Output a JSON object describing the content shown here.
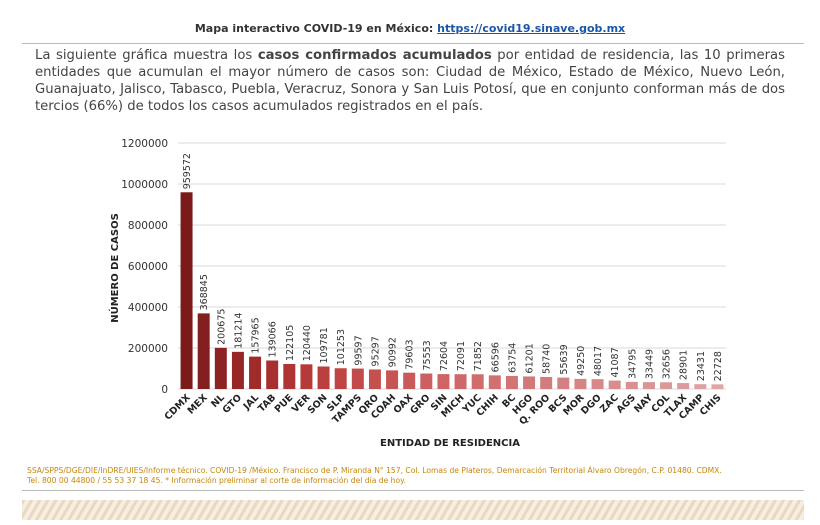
{
  "header": {
    "label": "Mapa interactivo COVID-19 en México:",
    "link": "https://covid19.sinave.gob.mx"
  },
  "paragraph": {
    "before": "La siguiente gráfica muestra los",
    "bold": "casos confirmados acumulados",
    "after": "por entidad de residencia, las 10 primeras entidades que acumulan el mayor número de casos son: Ciudad de México, Estado de México, Nuevo León, Guanajuato, Jalisco, Tabasco, Puebla, Veracruz, Sonora y San Luis Potosí, que en conjunto conforman más de dos tercios (66%) de todos los casos acumulados registrados en el país."
  },
  "chart_data": {
    "type": "bar",
    "x_label": "ENTIDAD DE RESIDENCIA",
    "y_label": "NÚMERO DE CASOS",
    "categories": [
      "CDMX",
      "MEX",
      "NL",
      "GTO",
      "JAL",
      "TAB",
      "PUE",
      "VER",
      "SON",
      "SLP",
      "TAMPS",
      "QRO",
      "COAH",
      "OAX",
      "GRO",
      "SIN",
      "MICH",
      "YUC",
      "CHIH",
      "BC",
      "HGO",
      "Q. ROO",
      "BCS",
      "MOR",
      "DGO",
      "ZAC",
      "AGS",
      "NAY",
      "COL",
      "TLAX",
      "CAMP",
      "CHIS"
    ],
    "values": [
      959572,
      368845,
      200675,
      181214,
      157965,
      139066,
      122105,
      120440,
      109781,
      101253,
      99597,
      95297,
      90992,
      79603,
      75553,
      72604,
      72091,
      71852,
      66596,
      63754,
      61201,
      58740,
      55639,
      49250,
      48017,
      41087,
      34795,
      33449,
      32656,
      28901,
      23431,
      22728
    ],
    "colors": [
      "#7a1a1a",
      "#841f1f",
      "#8e2323",
      "#972727",
      "#a02b2b",
      "#a82f2f",
      "#b03434",
      "#b63a3a",
      "#bb3f3f",
      "#bf4545",
      "#c24a4a",
      "#c55050",
      "#c85555",
      "#ca5a5a",
      "#cc5f5f",
      "#ce6464",
      "#cf6868",
      "#d06c6c",
      "#d17070",
      "#d27474",
      "#d37878",
      "#d47c7c",
      "#d58080",
      "#d68484",
      "#d78888",
      "#d88c8c",
      "#d99090",
      "#da9494",
      "#db9898",
      "#dc9c9c",
      "#dea0a0",
      "#e0a4a4"
    ],
    "ylim": [
      0,
      1200000
    ],
    "yticks": [
      0,
      200000,
      400000,
      600000,
      800000,
      1000000,
      1200000
    ],
    "grid": true
  },
  "footer": {
    "line1": "SSA/SPPS/DGE/DIE/InDRE/UIES/Informe técnico. COVID-19 /México. Francisco de P. Miranda N° 157, Col. Lomas de Plateros, Demarcación Territorial Álvaro Obregón, C.P. 01480. CDMX.",
    "line2": "Tel. 800 00 44800 / 55 53 37 18 45. * Información preliminar al corte de información del día de hoy."
  }
}
